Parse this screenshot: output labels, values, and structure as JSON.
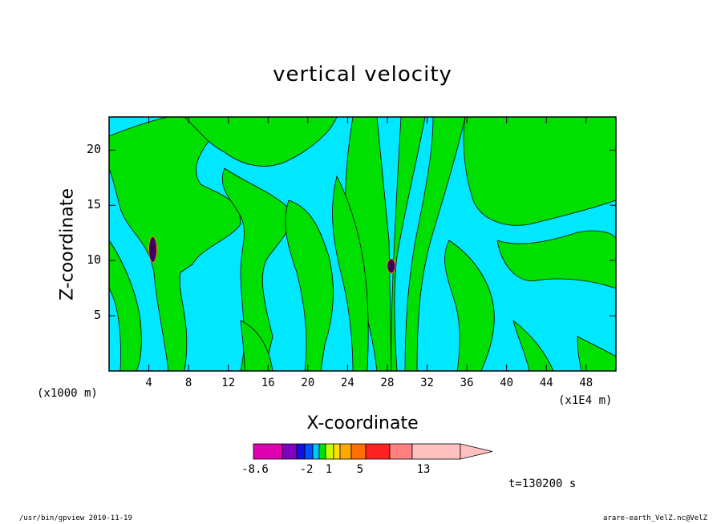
{
  "chart_data": {
    "type": "heatmap",
    "title": "vertical velocity",
    "xlabel": "X-coordinate",
    "ylabel": "Z-coordinate",
    "x_unit_left": "(x1000 m)",
    "x_unit_right": "(x1E4 m)",
    "xlim": [
      0,
      51
    ],
    "ylim": [
      0,
      23
    ],
    "x_ticks": [
      "4",
      "8",
      "12",
      "16",
      "20",
      "24",
      "28",
      "32",
      "36",
      "40",
      "44",
      "48"
    ],
    "y_ticks": [
      "5",
      "10",
      "15",
      "20"
    ],
    "colorbar": {
      "colors": [
        "#e000b0",
        "#8000c0",
        "#1010e0",
        "#0050ff",
        "#00c8ff",
        "#00e000",
        "#c8ff00",
        "#ffe000",
        "#ffa800",
        "#ff7000",
        "#ff2020",
        "#ff8080",
        "#ffc0c0"
      ],
      "labels": [
        "-8.6",
        "-2",
        "1",
        "5",
        "13"
      ]
    },
    "background_color": "#00e8ff",
    "contour_color": "#00e000"
  },
  "annotations": {
    "time": "t=130200 s",
    "footer_left": "/usr/bin/gpview   2010-11-19",
    "footer_right": "arare-earth_VelZ.nc@VelZ"
  }
}
